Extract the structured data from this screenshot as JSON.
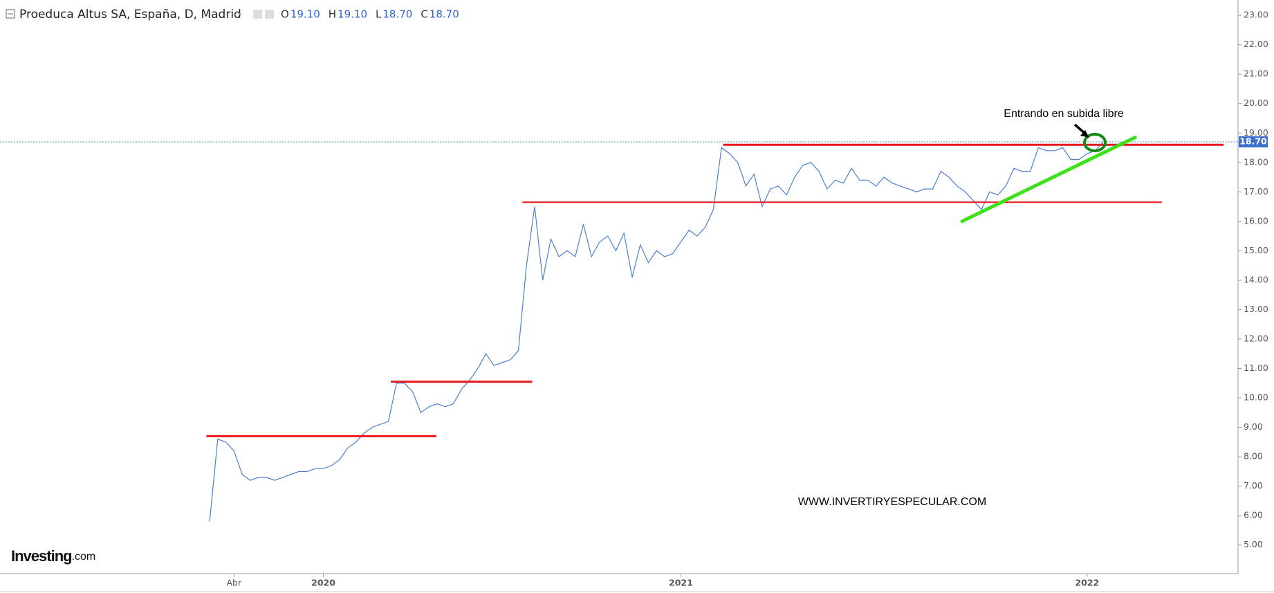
{
  "chart_data": {
    "type": "line",
    "title": "Proeduca Altus SA, España, D, Madrid",
    "ohlc": [
      {
        "key": "O",
        "value": "19.10"
      },
      {
        "key": "H",
        "value": "19.10"
      },
      {
        "key": "L",
        "value": "18.70"
      },
      {
        "key": "C",
        "value": "18.70"
      }
    ],
    "categories": [
      null,
      null,
      null,
      "Abr",
      null,
      null,
      null,
      null,
      null,
      null,
      null,
      null,
      null,
      null,
      "2020",
      null,
      null,
      null,
      null,
      null,
      null,
      null,
      null,
      null,
      null,
      null,
      null,
      null,
      null,
      null,
      null,
      null,
      null,
      null,
      null,
      null,
      null,
      null,
      null,
      null,
      null,
      null,
      null,
      null,
      null,
      null,
      null,
      null,
      null,
      null,
      null,
      null,
      null,
      null,
      null,
      null,
      null,
      null,
      "2021",
      null,
      null,
      null,
      null,
      null,
      null,
      null,
      null,
      null,
      null,
      null,
      null,
      null,
      null,
      null,
      null,
      null,
      null,
      null,
      null,
      null,
      null,
      null,
      null,
      null,
      null,
      null,
      null,
      null,
      null,
      null,
      null,
      null,
      null,
      null,
      null,
      null,
      null,
      null,
      null,
      null,
      null,
      null,
      null,
      null,
      null,
      null,
      null,
      null,
      "2022",
      null,
      null
    ],
    "series": [
      {
        "name": "Proeduca Altus SA",
        "color": "#4a7fd4",
        "values": [
          5.8,
          8.6,
          8.5,
          8.2,
          7.4,
          7.2,
          7.3,
          7.3,
          7.2,
          7.3,
          7.4,
          7.5,
          7.5,
          7.6,
          7.6,
          7.7,
          7.9,
          8.3,
          8.5,
          8.8,
          9.0,
          9.1,
          9.2,
          10.5,
          10.5,
          10.2,
          9.5,
          9.7,
          9.8,
          9.7,
          9.8,
          10.3,
          10.6,
          11.0,
          11.5,
          11.1,
          11.2,
          11.3,
          11.6,
          14.5,
          16.5,
          14.0,
          15.4,
          14.8,
          15.0,
          14.8,
          15.9,
          14.8,
          15.3,
          15.5,
          15.0,
          15.6,
          14.1,
          15.2,
          14.6,
          15.0,
          14.8,
          14.9,
          15.3,
          15.7,
          15.5,
          15.8,
          16.4,
          18.5,
          18.3,
          18.0,
          17.2,
          17.6,
          16.5,
          17.1,
          17.2,
          16.9,
          17.5,
          17.9,
          18.0,
          17.7,
          17.1,
          17.4,
          17.3,
          17.8,
          17.4,
          17.4,
          17.2,
          17.5,
          17.3,
          17.2,
          17.1,
          17.0,
          17.1,
          17.1,
          17.7,
          17.5,
          17.2,
          17.0,
          16.7,
          16.4,
          17.0,
          16.9,
          17.2,
          17.8,
          17.7,
          17.7,
          18.5,
          18.4,
          18.4,
          18.5,
          18.1,
          18.1,
          18.3,
          18.4,
          18.7
        ]
      }
    ],
    "ylim": [
      4.03,
      23.52
    ],
    "yticks": [
      {
        "value": 5,
        "label": "5.00"
      },
      {
        "value": 6,
        "label": "6.00"
      },
      {
        "value": 7,
        "label": "7.00"
      },
      {
        "value": 8,
        "label": "8.00"
      },
      {
        "value": 9,
        "label": "9.00"
      },
      {
        "value": 10,
        "label": "10.00"
      },
      {
        "value": 11,
        "label": "11.00"
      },
      {
        "value": 12,
        "label": "12.00"
      },
      {
        "value": 13,
        "label": "13.00"
      },
      {
        "value": 14,
        "label": "14.00"
      },
      {
        "value": 15,
        "label": "15.00"
      },
      {
        "value": 16,
        "label": "16.00"
      },
      {
        "value": 17,
        "label": "17.00"
      },
      {
        "value": 18,
        "label": "18.00"
      },
      {
        "value": 19,
        "label": "19.00"
      },
      {
        "value": 20,
        "label": "20.00"
      },
      {
        "value": 21,
        "label": "21.00"
      },
      {
        "value": 22,
        "label": "22.00"
      },
      {
        "value": 23,
        "label": "23.00"
      }
    ],
    "last_price": {
      "value": 18.7,
      "label": "18.70"
    },
    "resistance_levels": [
      8.7,
      10.55,
      16.65,
      18.6
    ],
    "resistance_color": "#e8161b",
    "trend_line": {
      "values": [
        16.0,
        18.85
      ],
      "color": "#3de11b"
    },
    "annotation": "Entrando en subida libre",
    "watermark": "WWW.INVERTIRYESPECULAR.COM",
    "logo": {
      "brand": "Investing",
      "suffix": ".com"
    }
  }
}
